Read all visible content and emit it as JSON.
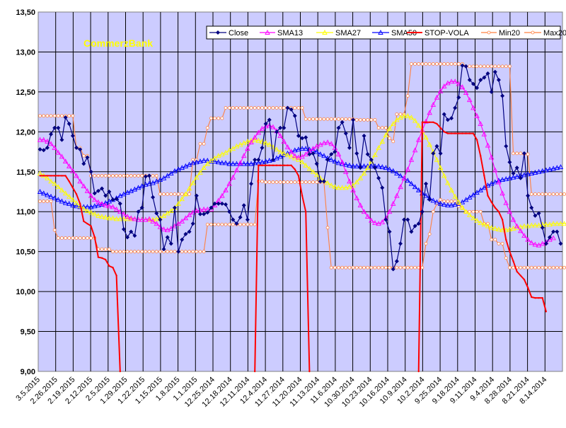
{
  "chart_data": {
    "type": "line",
    "title": "",
    "annotation": "CommerzBank",
    "xlabel": "",
    "ylabel": "",
    "ylim": [
      9.0,
      13.5
    ],
    "y_ticks": [
      "9,00",
      "9,50",
      "10,00",
      "10,50",
      "11,00",
      "11,50",
      "12,00",
      "12,50",
      "13,00",
      "13,50"
    ],
    "x_tick_labels": [
      "3.5.2015",
      "2.26.2015",
      "2.19.2015",
      "2.12.2015",
      "2.5.2015",
      "1.29.2015",
      "1.22.2015",
      "1.15.2015",
      "1.8.2015",
      "1.1.2015",
      "12.25.2014",
      "12.18.2014",
      "12.11.2014",
      "12.4.2014",
      "11.27.2014",
      "11.20.2014",
      "11.13.2014",
      "11.6.2014",
      "10.30.2014",
      "10.23.2014",
      "10.16.2014",
      "10.9.2014",
      "10.2.2014",
      "9.25.2014",
      "9.18.2014",
      "9.11.2014",
      "9.4.2014",
      "8.28.2014",
      "8.21.2014",
      "8.14.2014"
    ],
    "x_axis_order": "newest date at left, oldest at right",
    "grid": true,
    "legend_position": "top-right",
    "colors": {
      "plot_background": "#ccccff",
      "annotation": "#ffff00",
      "grid": "#000000"
    },
    "series": [
      {
        "name": "Close",
        "color": "#000080",
        "marker": "diamond",
        "values": [
          11.78,
          11.77,
          11.8,
          11.97,
          12.05,
          12.05,
          11.9,
          12.18,
          12.1,
          11.95,
          11.8,
          11.78,
          11.6,
          11.68,
          11.5,
          11.23,
          11.26,
          11.29,
          11.2,
          11.25,
          11.15,
          11.16,
          11.1,
          10.78,
          10.68,
          10.75,
          10.7,
          11.0,
          11.05,
          11.44,
          11.45,
          11.18,
          10.98,
          10.9,
          10.53,
          10.68,
          10.6,
          11.05,
          10.5,
          10.65,
          10.72,
          10.75,
          10.85,
          11.2,
          10.97,
          10.97,
          10.99,
          11.05,
          11.1,
          11.1,
          11.1,
          11.09,
          11.0,
          10.9,
          10.85,
          10.93,
          11.08,
          10.9,
          11.35,
          11.65,
          11.65,
          11.8,
          12.1,
          12.15,
          11.65,
          12.0,
          12.05,
          12.05,
          12.3,
          12.28,
          12.2,
          11.95,
          11.92,
          11.93,
          11.72,
          11.73,
          11.6,
          11.38,
          11.38,
          11.65,
          11.72,
          11.75,
          12.05,
          12.12,
          11.98,
          11.8,
          12.15,
          11.73,
          11.55,
          11.95,
          11.72,
          11.65,
          11.55,
          11.42,
          11.3,
          10.9,
          10.75,
          10.28,
          10.38,
          10.6,
          10.9,
          10.9,
          10.75,
          10.82,
          10.85,
          11.0,
          11.35,
          11.15,
          11.73,
          11.82,
          11.73,
          12.22,
          12.15,
          12.17,
          12.3,
          12.43,
          12.83,
          12.82,
          12.65,
          12.6,
          12.55,
          12.65,
          12.68,
          12.73,
          12.5,
          12.75,
          12.65,
          12.45,
          11.82,
          11.62,
          11.48,
          11.55,
          11.42,
          11.73,
          11.2,
          11.05,
          10.95,
          10.98,
          10.8,
          10.6,
          10.68,
          10.75,
          10.75,
          10.6
        ]
      },
      {
        "name": "SMA13",
        "color": "#ff00ff",
        "marker": "triangle-up",
        "values": [
          11.9,
          11.9,
          11.88,
          11.85,
          11.8,
          11.74,
          11.69,
          11.63,
          11.57,
          11.51,
          11.45,
          11.38,
          11.32,
          11.26,
          11.2,
          11.15,
          11.12,
          11.1,
          11.08,
          11.07,
          11.06,
          11.03,
          11.0,
          10.97,
          10.94,
          10.92,
          10.91,
          10.9,
          10.9,
          10.9,
          10.91,
          10.88,
          10.85,
          10.81,
          10.78,
          10.77,
          10.79,
          10.82,
          10.85,
          10.88,
          10.92,
          10.96,
          10.99,
          11.01,
          11.02,
          11.03,
          11.03,
          11.03,
          11.08,
          11.14,
          11.2,
          11.27,
          11.35,
          11.43,
          11.52,
          11.61,
          11.7,
          11.79,
          11.87,
          11.93,
          11.99,
          12.04,
          12.07,
          12.08,
          12.06,
          12.01,
          11.95,
          11.88,
          11.81,
          11.75,
          11.7,
          11.68,
          11.69,
          11.72,
          11.76,
          11.79,
          11.82,
          11.84,
          11.86,
          11.87,
          11.85,
          11.8,
          11.72,
          11.62,
          11.5,
          11.38,
          11.27,
          11.17,
          11.08,
          11.0,
          10.94,
          10.89,
          10.86,
          10.85,
          10.87,
          10.92,
          11.0,
          11.1,
          11.2,
          11.31,
          11.42,
          11.53,
          11.65,
          11.77,
          11.9,
          12.02,
          12.13,
          12.24,
          12.34,
          12.43,
          12.51,
          12.57,
          12.61,
          12.63,
          12.63,
          12.6,
          12.56,
          12.49,
          12.4,
          12.3,
          12.2,
          12.1,
          11.97,
          11.83,
          11.68,
          11.52,
          11.37,
          11.23,
          11.11,
          11.0,
          10.9,
          10.82,
          10.76,
          10.7,
          10.65,
          10.61,
          10.59,
          10.58,
          10.6,
          10.62,
          10.65,
          10.67
        ]
      },
      {
        "name": "SMA27",
        "color": "#ffff00",
        "marker": "triangle-up",
        "values": [
          11.48,
          11.45,
          11.42,
          11.38,
          11.35,
          11.31,
          11.27,
          11.23,
          11.19,
          11.15,
          11.11,
          11.07,
          11.04,
          11.01,
          10.99,
          10.97,
          10.95,
          10.94,
          10.93,
          10.92,
          10.92,
          10.91,
          10.91,
          10.91,
          10.91,
          10.91,
          10.91,
          10.9,
          10.9,
          10.9,
          10.9,
          10.9,
          10.91,
          10.92,
          10.95,
          10.98,
          11.01,
          11.05,
          11.1,
          11.16,
          11.22,
          11.29,
          11.36,
          11.43,
          11.49,
          11.55,
          11.6,
          11.64,
          11.67,
          11.7,
          11.72,
          11.74,
          11.77,
          11.79,
          11.82,
          11.84,
          11.86,
          11.88,
          11.89,
          11.9,
          11.89,
          11.88,
          11.86,
          11.84,
          11.81,
          11.78,
          11.75,
          11.73,
          11.71,
          11.69,
          11.67,
          11.65,
          11.62,
          11.58,
          11.54,
          11.5,
          11.46,
          11.42,
          11.39,
          11.36,
          11.33,
          11.31,
          11.3,
          11.3,
          11.3,
          11.31,
          11.33,
          11.37,
          11.42,
          11.48,
          11.55,
          11.63,
          11.71,
          11.8,
          11.88,
          11.96,
          12.04,
          12.1,
          12.15,
          12.18,
          12.2,
          12.2,
          12.18,
          12.14,
          12.08,
          12.01,
          11.93,
          11.84,
          11.75,
          11.65,
          11.55,
          11.45,
          11.36,
          11.27,
          11.19,
          11.12,
          11.05,
          11.0,
          10.96,
          10.92,
          10.89,
          10.86,
          10.84,
          10.82,
          10.8,
          10.79,
          10.78,
          10.77,
          10.77,
          10.78,
          10.79,
          10.8,
          10.81,
          10.82,
          10.82,
          10.83,
          10.83,
          10.83,
          10.84,
          10.84,
          10.84,
          10.85,
          10.85,
          10.85,
          10.85,
          10.85
        ]
      },
      {
        "name": "SMA50",
        "color": "#0000ff",
        "marker": "triangle-up",
        "values": [
          11.25,
          11.23,
          11.21,
          11.19,
          11.17,
          11.15,
          11.13,
          11.11,
          11.1,
          11.08,
          11.07,
          11.06,
          11.06,
          11.06,
          11.06,
          11.07,
          11.08,
          11.09,
          11.11,
          11.13,
          11.15,
          11.17,
          11.2,
          11.22,
          11.24,
          11.26,
          11.28,
          11.3,
          11.32,
          11.34,
          11.35,
          11.36,
          11.38,
          11.4,
          11.42,
          11.45,
          11.48,
          11.51,
          11.53,
          11.55,
          11.57,
          11.59,
          11.61,
          11.62,
          11.63,
          11.64,
          11.64,
          11.63,
          11.63,
          11.62,
          11.61,
          11.61,
          11.6,
          11.6,
          11.6,
          11.6,
          11.6,
          11.6,
          11.6,
          11.61,
          11.61,
          11.62,
          11.63,
          11.64,
          11.65,
          11.67,
          11.69,
          11.71,
          11.73,
          11.75,
          11.77,
          11.78,
          11.79,
          11.79,
          11.78,
          11.77,
          11.75,
          11.72,
          11.7,
          11.67,
          11.65,
          11.63,
          11.61,
          11.6,
          11.59,
          11.58,
          11.57,
          11.57,
          11.57,
          11.57,
          11.57,
          11.57,
          11.57,
          11.57,
          11.56,
          11.55,
          11.53,
          11.51,
          11.48,
          11.45,
          11.42,
          11.39,
          11.35,
          11.31,
          11.27,
          11.23,
          11.2,
          11.17,
          11.14,
          11.12,
          11.1,
          11.09,
          11.08,
          11.08,
          11.09,
          11.1,
          11.12,
          11.15,
          11.18,
          11.21,
          11.24,
          11.27,
          11.3,
          11.33,
          11.35,
          11.37,
          11.39,
          11.4,
          11.41,
          11.42,
          11.43,
          11.44,
          11.45,
          11.46,
          11.47,
          11.48,
          11.49,
          11.5,
          11.51,
          11.52,
          11.53,
          11.54,
          11.55,
          11.56
        ]
      },
      {
        "name": "STOP-VOLA",
        "color": "#ff0000",
        "marker": "dot",
        "values": [
          11.45,
          11.45,
          11.45,
          11.45,
          11.45,
          11.45,
          11.45,
          11.45,
          11.38,
          11.3,
          11.22,
          11.1,
          10.88,
          10.85,
          10.82,
          10.68,
          10.43,
          10.42,
          10.4,
          10.32,
          10.3,
          10.2,
          9.0,
          null,
          null,
          null,
          null,
          null,
          null,
          null,
          null,
          null,
          null,
          null,
          null,
          null,
          null,
          null,
          null,
          null,
          null,
          null,
          null,
          null,
          null,
          null,
          null,
          null,
          null,
          null,
          null,
          null,
          null,
          null,
          null,
          null,
          null,
          null,
          null,
          9.0,
          11.58,
          11.58,
          11.58,
          11.58,
          11.58,
          11.58,
          11.58,
          11.58,
          11.58,
          11.58,
          11.53,
          11.45,
          11.2,
          11.0,
          9.0,
          null,
          null,
          null,
          null,
          null,
          null,
          null,
          null,
          null,
          null,
          null,
          null,
          null,
          null,
          null,
          null,
          null,
          null,
          null,
          null,
          null,
          null,
          null,
          null,
          null,
          null,
          null,
          null,
          null,
          9.0,
          12.12,
          12.12,
          12.12,
          12.12,
          12.1,
          12.05,
          12.0,
          11.98,
          11.98,
          11.98,
          11.98,
          11.98,
          11.98,
          11.98,
          11.98,
          11.9,
          11.7,
          11.45,
          11.2,
          11.12,
          11.05,
          11.0,
          10.9,
          10.65,
          10.5,
          10.38,
          10.25,
          10.2,
          10.15,
          10.05,
          9.93,
          9.92,
          9.92,
          9.92,
          9.75
        ]
      },
      {
        "name": "Min20",
        "color": "#ff8040",
        "marker": "circle-open",
        "values": [
          11.13,
          11.13,
          11.13,
          11.13,
          10.77,
          10.67,
          10.67,
          10.67,
          10.67,
          10.67,
          10.67,
          10.67,
          10.67,
          10.67,
          10.67,
          10.67,
          10.53,
          10.53,
          10.53,
          10.53,
          10.5,
          10.5,
          10.5,
          10.5,
          10.5,
          10.5,
          10.5,
          10.5,
          10.5,
          10.5,
          10.5,
          10.5,
          10.5,
          10.5,
          10.5,
          10.5,
          10.5,
          10.5,
          10.5,
          10.5,
          10.5,
          10.5,
          10.5,
          10.5,
          10.5,
          10.5,
          10.84,
          10.84,
          10.84,
          10.84,
          10.84,
          10.84,
          10.84,
          10.84,
          10.84,
          10.84,
          10.84,
          10.84,
          10.84,
          10.84,
          11.38,
          11.38,
          11.37,
          11.37,
          11.37,
          11.37,
          11.37,
          11.37,
          11.37,
          11.37,
          11.37,
          11.37,
          11.37,
          11.37,
          11.37,
          11.37,
          11.37,
          11.37,
          11.37,
          10.8,
          10.3,
          10.3,
          10.3,
          10.3,
          10.3,
          10.3,
          10.3,
          10.3,
          10.3,
          10.3,
          10.3,
          10.3,
          10.3,
          10.3,
          10.3,
          10.3,
          10.3,
          10.3,
          10.3,
          10.3,
          10.3,
          10.3,
          10.3,
          10.3,
          10.3,
          10.3,
          10.6,
          10.72,
          11.0,
          11.1,
          11.15,
          11.13,
          11.13,
          11.13,
          11.13,
          11.07,
          11.05,
          11.0,
          11.0,
          11.0,
          11.0,
          11.0,
          10.85,
          10.85,
          10.65,
          10.65,
          10.6,
          10.6,
          10.42,
          10.3,
          10.3,
          10.3,
          10.3,
          10.3,
          10.3,
          10.3,
          10.3,
          10.3,
          10.3,
          10.3,
          10.3,
          10.3,
          10.3,
          10.3,
          10.3,
          10.3
        ]
      },
      {
        "name": "Max20",
        "color": "#ff8040",
        "marker": "circle-open",
        "values": [
          12.2,
          12.2,
          12.2,
          12.2,
          12.2,
          12.2,
          12.2,
          12.2,
          12.2,
          12.2,
          11.8,
          11.8,
          11.7,
          11.7,
          11.45,
          11.45,
          11.45,
          11.45,
          11.45,
          11.45,
          11.45,
          11.45,
          11.45,
          11.45,
          11.45,
          11.45,
          11.45,
          11.45,
          11.45,
          11.45,
          11.45,
          11.45,
          11.45,
          11.22,
          11.22,
          11.22,
          11.22,
          11.22,
          11.22,
          11.22,
          11.22,
          11.22,
          11.65,
          11.65,
          11.85,
          11.85,
          12.05,
          12.17,
          12.17,
          12.17,
          12.17,
          12.3,
          12.3,
          12.3,
          12.3,
          12.3,
          12.3,
          12.3,
          12.3,
          12.3,
          12.3,
          12.3,
          12.3,
          12.3,
          12.3,
          12.3,
          12.3,
          12.3,
          12.3,
          12.3,
          12.3,
          12.3,
          12.3,
          12.16,
          12.16,
          12.16,
          12.16,
          12.16,
          12.16,
          12.16,
          12.16,
          12.16,
          12.16,
          12.16,
          12.16,
          12.16,
          12.16,
          12.15,
          12.15,
          12.15,
          12.15,
          12.15,
          12.15,
          12.05,
          12.05,
          12.05,
          11.92,
          11.88,
          12.22,
          12.22,
          12.22,
          12.45,
          12.85,
          12.85,
          12.85,
          12.85,
          12.85,
          12.85,
          12.85,
          12.85,
          12.85,
          12.85,
          12.85,
          12.85,
          12.85,
          12.85,
          12.85,
          12.82,
          12.82,
          12.82,
          12.82,
          12.82,
          12.82,
          12.82,
          12.82,
          12.82,
          12.82,
          12.82,
          12.82,
          12.82,
          11.73,
          11.73,
          11.73,
          11.72,
          11.72,
          11.22,
          11.22,
          11.22,
          11.22,
          11.22,
          11.22,
          11.22,
          11.22,
          11.22,
          11.22,
          11.22,
          11.22,
          11.22
        ]
      }
    ]
  }
}
